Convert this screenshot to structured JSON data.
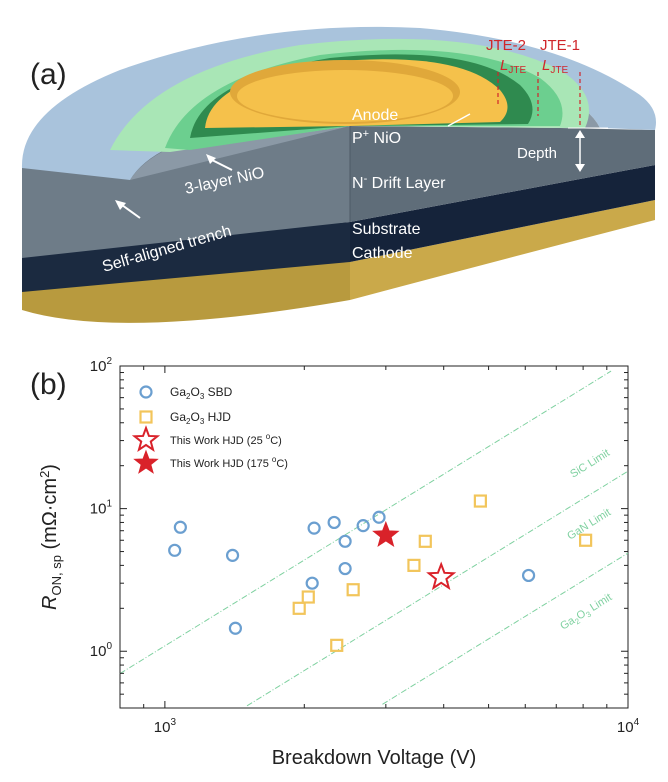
{
  "panel_a": {
    "label": "(a)",
    "labels": {
      "jte2": "JTE-2",
      "jte1": "JTE-1",
      "ljte_l": "L",
      "ljte_sub": "JTE",
      "anode": "Anode",
      "pnio_pre": "P",
      "pnio_sup": "+",
      "pnio_post": " NiO",
      "depth": "Depth",
      "nio3": "3-layer NiO",
      "drift_pre": "N",
      "drift_sup": "-",
      "drift_post": " Drift Layer",
      "trench": "Self-aligned trench",
      "substrate": "Substrate",
      "cathode": "Cathode"
    },
    "colors": {
      "anode": "#f5c14b",
      "green_dark": "#2f8a4f",
      "green_mid": "#6ccf8f",
      "green_light": "#a9e6b6",
      "wafer": "#6e7c88",
      "trench": "#a9c3dc",
      "substrate": "#1b2a40",
      "cathode": "#c8a84a",
      "label_red": "#d0262b"
    }
  },
  "panel_b": {
    "label": "(b)",
    "legend": [
      {
        "pre": "Ga",
        "s1": "2",
        "mid": "O",
        "s2": "3",
        "post": " SBD",
        "marker": "circle",
        "color": "#6b9fd0"
      },
      {
        "pre": "Ga",
        "s1": "2",
        "mid": "O",
        "s2": "3",
        "post": " HJD",
        "marker": "square",
        "color": "#f2c55b"
      },
      {
        "pre": "This Work HJD (25 ",
        "sup": "o",
        "post": "C)",
        "marker": "star-open",
        "color": "#d9222a"
      },
      {
        "pre": "This Work HJD (175 ",
        "sup": "o",
        "post": "C)",
        "marker": "star-filled",
        "color": "#d9222a"
      }
    ],
    "limits": [
      {
        "text": "SiC Limit"
      },
      {
        "text": "GaN Limit"
      },
      {
        "pre": "Ga",
        "s1": "2",
        "mid": "O",
        "s2": "3",
        "post": " Limit"
      }
    ]
  },
  "chart_data": {
    "type": "scatter",
    "title": "",
    "xlabel": "Breakdown Voltage (V)",
    "ylabel_main": "R",
    "ylabel_sub": "ON, sp",
    "ylabel_unit": " (mΩ·cm",
    "ylabel_sup": "2",
    "ylabel_end": ")",
    "x_scale": "log",
    "y_scale": "log",
    "xlim": [
      800,
      10000
    ],
    "ylim": [
      0.4,
      100
    ],
    "x_ticks": [
      {
        "base": "10",
        "exp": "3",
        "value": 1000
      },
      {
        "base": "10",
        "exp": "4",
        "value": 10000
      }
    ],
    "y_ticks": [
      {
        "base": "10",
        "exp": "0",
        "value": 1
      },
      {
        "base": "10",
        "exp": "1",
        "value": 10
      },
      {
        "base": "10",
        "exp": "2",
        "value": 100
      }
    ],
    "legend_position": "top-left",
    "limit_color": "#7fd1a0",
    "series": [
      {
        "name": "Ga2O3 SBD",
        "marker": "circle",
        "color": "#6b9fd0",
        "points": [
          [
            1050,
            5.1
          ],
          [
            1080,
            7.4
          ],
          [
            1400,
            4.7
          ],
          [
            1420,
            1.45
          ],
          [
            2100,
            7.3
          ],
          [
            2080,
            3.0
          ],
          [
            2320,
            8.0
          ],
          [
            2450,
            5.9
          ],
          [
            2450,
            3.8
          ],
          [
            2680,
            7.6
          ],
          [
            2900,
            8.7
          ],
          [
            6100,
            3.4
          ]
        ]
      },
      {
        "name": "Ga2O3 HJD",
        "marker": "square",
        "color": "#f2c55b",
        "points": [
          [
            1950,
            2.0
          ],
          [
            2040,
            2.4
          ],
          [
            2350,
            1.1
          ],
          [
            2550,
            2.7
          ],
          [
            3450,
            4.0
          ],
          [
            3650,
            5.9
          ],
          [
            4800,
            11.3
          ],
          [
            8100,
            6.0
          ]
        ]
      },
      {
        "name": "This Work HJD (25 oC)",
        "marker": "star-open",
        "color": "#d9222a",
        "points": [
          [
            3950,
            3.3
          ]
        ]
      },
      {
        "name": "This Work HJD (175 oC)",
        "marker": "star-filled",
        "color": "#d9222a",
        "points": [
          [
            3000,
            6.5
          ]
        ]
      }
    ],
    "limit_lines": [
      {
        "name": "SiC Limit",
        "coef": 1.09e-06
      },
      {
        "name": "GaN Limit",
        "coef": 1.83e-07
      },
      {
        "name": "Ga2O3 Limit",
        "coef": 4.88e-08
      }
    ]
  }
}
